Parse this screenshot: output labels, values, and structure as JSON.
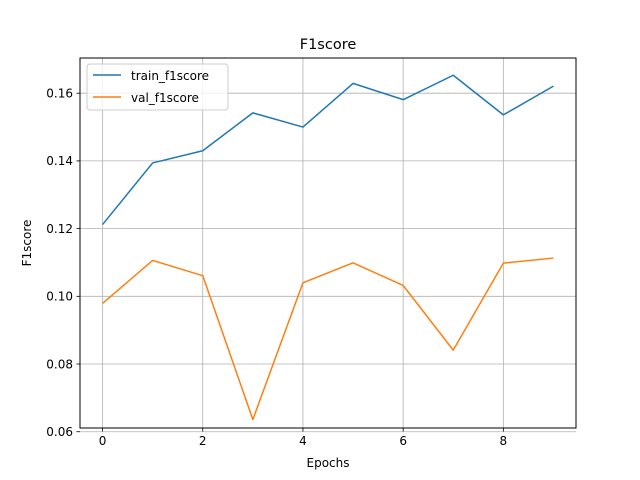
{
  "chart_data": {
    "type": "line",
    "title": "F1score",
    "xlabel": "Epochs",
    "ylabel": "F1score",
    "x": [
      0,
      1,
      2,
      3,
      4,
      5,
      6,
      7,
      8,
      9
    ],
    "series": [
      {
        "name": "train_f1score",
        "color": "#1f77b4",
        "values": [
          0.1212,
          0.1394,
          0.143,
          0.1542,
          0.15,
          0.1629,
          0.1581,
          0.1653,
          0.1536,
          0.1621
        ]
      },
      {
        "name": "val_f1score",
        "color": "#ff7f0e",
        "values": [
          0.0979,
          0.1106,
          0.1061,
          0.0636,
          0.104,
          0.1099,
          0.1032,
          0.0841,
          0.1098,
          0.1113
        ]
      }
    ],
    "xlim": [
      -0.45,
      9.45
    ],
    "ylim": [
      0.0611,
      0.1704
    ],
    "xticks": [
      0,
      2,
      4,
      6,
      8
    ],
    "xtick_labels": [
      "0",
      "2",
      "4",
      "6",
      "8"
    ],
    "yticks": [
      0.06,
      0.08,
      0.1,
      0.12,
      0.14,
      0.16
    ],
    "ytick_labels": [
      "0.06",
      "0.08",
      "0.10",
      "0.12",
      "0.14",
      "0.16"
    ],
    "grid": true,
    "legend_position": "top-left"
  }
}
